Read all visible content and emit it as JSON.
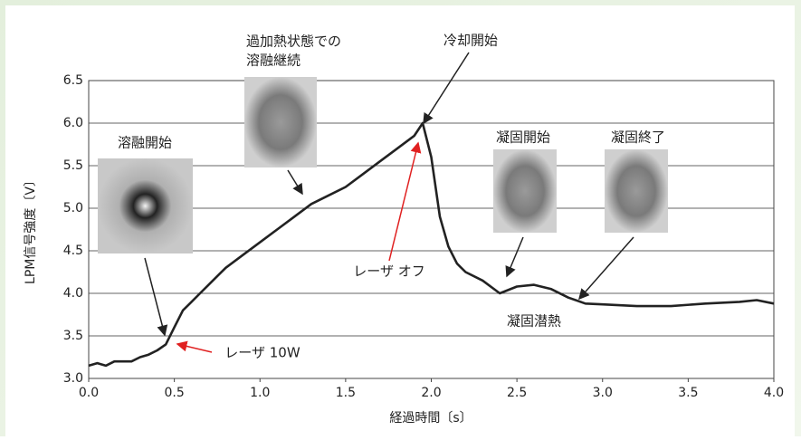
{
  "chart_data": {
    "type": "line",
    "xlabel": "経過時間〔s〕",
    "ylabel": "LPM信号強度〔V〕",
    "x": [
      0,
      0.05,
      0.1,
      0.15,
      0.2,
      0.25,
      0.3,
      0.35,
      0.4,
      0.45,
      0.5,
      0.55,
      0.6,
      0.65,
      0.7,
      0.75,
      0.8,
      0.9,
      1.0,
      1.1,
      1.2,
      1.3,
      1.4,
      1.5,
      1.6,
      1.7,
      1.8,
      1.9,
      1.95,
      2.0,
      2.05,
      2.1,
      2.15,
      2.2,
      2.3,
      2.4,
      2.5,
      2.6,
      2.7,
      2.8,
      2.9,
      3.0,
      3.2,
      3.4,
      3.6,
      3.8,
      3.9,
      4.0
    ],
    "values": [
      3.15,
      3.18,
      3.15,
      3.2,
      3.2,
      3.2,
      3.25,
      3.28,
      3.33,
      3.4,
      3.6,
      3.8,
      3.9,
      4.0,
      4.1,
      4.2,
      4.3,
      4.45,
      4.6,
      4.75,
      4.9,
      5.05,
      5.15,
      5.25,
      5.4,
      5.55,
      5.7,
      5.85,
      6.0,
      5.6,
      4.9,
      4.55,
      4.35,
      4.25,
      4.15,
      4.0,
      4.08,
      4.1,
      4.05,
      3.95,
      3.88,
      3.87,
      3.85,
      3.85,
      3.88,
      3.9,
      3.92,
      3.88
    ],
    "color": "#222222",
    "xlim": [
      0,
      4
    ],
    "ylim": [
      3,
      6.5
    ],
    "xticks": [
      {
        "value": 0,
        "label": "0.0"
      },
      {
        "value": 0.5,
        "label": "0.5"
      },
      {
        "value": 1,
        "label": "1.0"
      },
      {
        "value": 1.5,
        "label": "1.5"
      },
      {
        "value": 2,
        "label": "2.0"
      },
      {
        "value": 2.5,
        "label": "2.5"
      },
      {
        "value": 3,
        "label": "3.0"
      },
      {
        "value": 3.5,
        "label": "3.5"
      },
      {
        "value": 4,
        "label": "4.0"
      }
    ],
    "yticks": [
      {
        "value": 3,
        "label": "3.0"
      },
      {
        "value": 3.5,
        "label": "3.5"
      },
      {
        "value": 4,
        "label": "4.0"
      },
      {
        "value": 4.5,
        "label": "4.5"
      },
      {
        "value": 5,
        "label": "5.0"
      },
      {
        "value": 5.5,
        "label": "5.5"
      },
      {
        "value": 6,
        "label": "6.0"
      },
      {
        "value": 6.5,
        "label": "6.5"
      }
    ],
    "grid": true,
    "annotations": [
      [
        "溶融開始"
      ],
      [
        "過加熱状態での",
        "溶融継続"
      ],
      [
        "冷却開始"
      ],
      [
        "凝固開始"
      ],
      [
        "凝固終了"
      ],
      [
        "レーザ オフ"
      ],
      [
        "凝固潜熱"
      ],
      [
        "レーザ 10W"
      ]
    ]
  }
}
